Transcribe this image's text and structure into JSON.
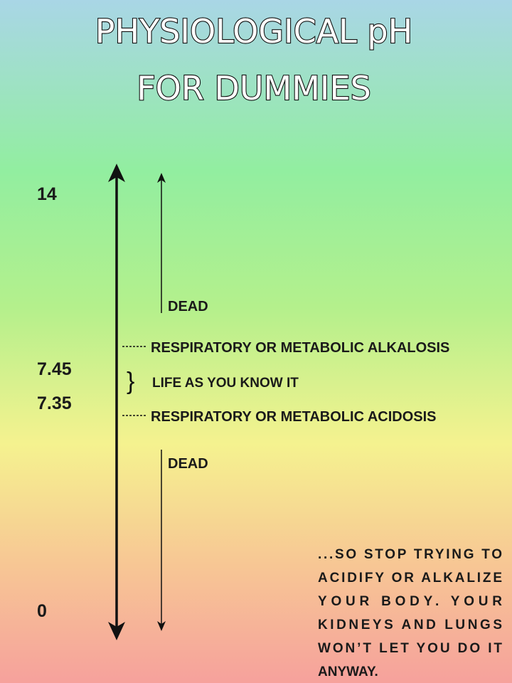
{
  "title": {
    "lines": [
      "PHYSIOLOGICAL pH",
      "FOR DUMMIES"
    ]
  },
  "scale": {
    "labels": [
      "14",
      "7.45",
      "7.35",
      "0"
    ]
  },
  "zones": [
    "DEAD",
    "RESPIRATORY OR METABOLIC ALKALOSIS",
    "LIFE AS YOU KNOW IT",
    "RESPIRATORY OR METABOLIC ACIDOSIS",
    "DEAD"
  ],
  "note": {
    "lines": [
      "...SO STOP TRYING TO",
      "ACIDIFY OR ALKALIZE",
      "YOUR BODY. YOUR",
      "KIDNEYS AND LUNGS",
      "WON’T LET YOU DO IT",
      "ANYWAY."
    ]
  }
}
